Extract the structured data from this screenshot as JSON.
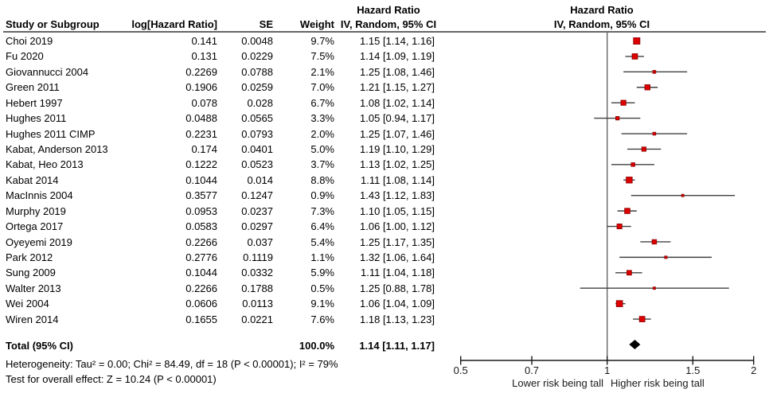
{
  "header": {
    "study": "Study or Subgroup",
    "log_hr": "log[Hazard Ratio]",
    "se": "SE",
    "weight": "Weight",
    "hazard_ratio_line1": "Hazard Ratio",
    "hazard_ratio_line2": "IV, Random, 95% CI",
    "plot_hazard_ratio_line1": "Hazard Ratio",
    "plot_hazard_ratio_line2": "IV, Random, 95% CI"
  },
  "total_row": {
    "label": "Total (95% CI)",
    "weight": "100.0%",
    "ci_text": "1.14 [1.11, 1.17]"
  },
  "footnotes": {
    "heterogeneity": "Heterogeneity: Tau² = 0.00; Chi² = 84.49, df = 18 (P < 0.00001); I² = 79%",
    "overall_effect": "Test for overall effect: Z = 10.24 (P < 0.00001)"
  },
  "axis": {
    "left_direction_label": "Lower risk being tall",
    "right_direction_label": "Higher risk being tall"
  },
  "colors": {
    "marker_fill": "#dd0000",
    "marker_border": "#8b0000",
    "diamond_fill": "#000000",
    "ci_line": "#404040",
    "no_effect_line": "#666666",
    "axis_line": "#1a1a1a",
    "header_rule": "#333333"
  },
  "chart_data": {
    "type": "forest",
    "effect_measure": "Hazard Ratio",
    "method": "IV, Random, 95% CI",
    "xscale": "log",
    "xlim": [
      0.5,
      2
    ],
    "xticks": [
      0.5,
      0.7,
      1,
      1.5,
      2
    ],
    "xtick_labels": [
      "0.5",
      "0.7",
      "1",
      "1.5",
      "2"
    ],
    "studies": [
      {
        "name": "Choi 2019",
        "log_hr": "0.141",
        "se": "0.0048",
        "weight_text": "9.7%",
        "weight": 9.7,
        "hr": 1.15,
        "lo": 1.14,
        "hi": 1.16,
        "ci_text": "1.15 [1.14, 1.16]"
      },
      {
        "name": "Fu 2020",
        "log_hr": "0.131",
        "se": "0.0229",
        "weight_text": "7.5%",
        "weight": 7.5,
        "hr": 1.14,
        "lo": 1.09,
        "hi": 1.19,
        "ci_text": "1.14 [1.09, 1.19]"
      },
      {
        "name": "Giovannucci 2004",
        "log_hr": "0.2269",
        "se": "0.0788",
        "weight_text": "2.1%",
        "weight": 2.1,
        "hr": 1.25,
        "lo": 1.08,
        "hi": 1.46,
        "ci_text": "1.25 [1.08, 1.46]"
      },
      {
        "name": "Green 2011",
        "log_hr": "0.1906",
        "se": "0.0259",
        "weight_text": "7.0%",
        "weight": 7.0,
        "hr": 1.21,
        "lo": 1.15,
        "hi": 1.27,
        "ci_text": "1.21 [1.15, 1.27]"
      },
      {
        "name": "Hebert 1997",
        "log_hr": "0.078",
        "se": "0.028",
        "weight_text": "6.7%",
        "weight": 6.7,
        "hr": 1.08,
        "lo": 1.02,
        "hi": 1.14,
        "ci_text": "1.08 [1.02, 1.14]"
      },
      {
        "name": "Hughes 2011",
        "log_hr": "0.0488",
        "se": "0.0565",
        "weight_text": "3.3%",
        "weight": 3.3,
        "hr": 1.05,
        "lo": 0.94,
        "hi": 1.17,
        "ci_text": "1.05 [0.94, 1.17]"
      },
      {
        "name": "Hughes 2011 CIMP",
        "log_hr": "0.2231",
        "se": "0.0793",
        "weight_text": "2.0%",
        "weight": 2.0,
        "hr": 1.25,
        "lo": 1.07,
        "hi": 1.46,
        "ci_text": "1.25 [1.07, 1.46]"
      },
      {
        "name": "Kabat, Anderson 2013",
        "log_hr": "0.174",
        "se": "0.0401",
        "weight_text": "5.0%",
        "weight": 5.0,
        "hr": 1.19,
        "lo": 1.1,
        "hi": 1.29,
        "ci_text": "1.19 [1.10, 1.29]"
      },
      {
        "name": "Kabat, Heo 2013",
        "log_hr": "0.1222",
        "se": "0.0523",
        "weight_text": "3.7%",
        "weight": 3.7,
        "hr": 1.13,
        "lo": 1.02,
        "hi": 1.25,
        "ci_text": "1.13 [1.02, 1.25]"
      },
      {
        "name": "Kabat 2014",
        "log_hr": "0.1044",
        "se": "0.014",
        "weight_text": "8.8%",
        "weight": 8.8,
        "hr": 1.11,
        "lo": 1.08,
        "hi": 1.14,
        "ci_text": "1.11 [1.08, 1.14]"
      },
      {
        "name": "MacInnis 2004",
        "log_hr": "0.3577",
        "se": "0.1247",
        "weight_text": "0.9%",
        "weight": 0.9,
        "hr": 1.43,
        "lo": 1.12,
        "hi": 1.83,
        "ci_text": "1.43 [1.12, 1.83]"
      },
      {
        "name": "Murphy 2019",
        "log_hr": "0.0953",
        "se": "0.0237",
        "weight_text": "7.3%",
        "weight": 7.3,
        "hr": 1.1,
        "lo": 1.05,
        "hi": 1.15,
        "ci_text": "1.10 [1.05, 1.15]"
      },
      {
        "name": "Ortega 2017",
        "log_hr": "0.0583",
        "se": "0.0297",
        "weight_text": "6.4%",
        "weight": 6.4,
        "hr": 1.06,
        "lo": 1.0,
        "hi": 1.12,
        "ci_text": "1.06 [1.00, 1.12]"
      },
      {
        "name": "Oyeyemi 2019",
        "log_hr": "0.2266",
        "se": "0.037",
        "weight_text": "5.4%",
        "weight": 5.4,
        "hr": 1.25,
        "lo": 1.17,
        "hi": 1.35,
        "ci_text": "1.25 [1.17, 1.35]"
      },
      {
        "name": "Park 2012",
        "log_hr": "0.2776",
        "se": "0.1119",
        "weight_text": "1.1%",
        "weight": 1.1,
        "hr": 1.32,
        "lo": 1.06,
        "hi": 1.64,
        "ci_text": "1.32 [1.06, 1.64]"
      },
      {
        "name": "Sung 2009",
        "log_hr": "0.1044",
        "se": "0.0332",
        "weight_text": "5.9%",
        "weight": 5.9,
        "hr": 1.11,
        "lo": 1.04,
        "hi": 1.18,
        "ci_text": "1.11 [1.04, 1.18]"
      },
      {
        "name": "Walter 2013",
        "log_hr": "0.2266",
        "se": "0.1788",
        "weight_text": "0.5%",
        "weight": 0.5,
        "hr": 1.25,
        "lo": 0.88,
        "hi": 1.78,
        "ci_text": "1.25 [0.88, 1.78]"
      },
      {
        "name": "Wei 2004",
        "log_hr": "0.0606",
        "se": "0.0113",
        "weight_text": "9.1%",
        "weight": 9.1,
        "hr": 1.06,
        "lo": 1.04,
        "hi": 1.09,
        "ci_text": "1.06 [1.04, 1.09]"
      },
      {
        "name": "Wiren 2014",
        "log_hr": "0.1655",
        "se": "0.0221",
        "weight_text": "7.6%",
        "weight": 7.6,
        "hr": 1.18,
        "lo": 1.13,
        "hi": 1.23,
        "ci_text": "1.18 [1.13, 1.23]"
      }
    ],
    "total": {
      "label": "Total (95% CI)",
      "weight_text": "100.0%",
      "weight": 100.0,
      "hr": 1.14,
      "lo": 1.11,
      "hi": 1.17,
      "ci_text": "1.14 [1.11, 1.17]"
    },
    "heterogeneity": {
      "tau2": "0.00",
      "chi2": "84.49",
      "df": "18",
      "p": "< 0.00001",
      "i2": "79%"
    },
    "overall_effect": {
      "z": "10.24",
      "p": "< 0.00001"
    },
    "direction_labels": {
      "left": "Lower risk being tall",
      "right": "Higher risk being tall"
    },
    "legend_position": "none",
    "grid": false
  }
}
